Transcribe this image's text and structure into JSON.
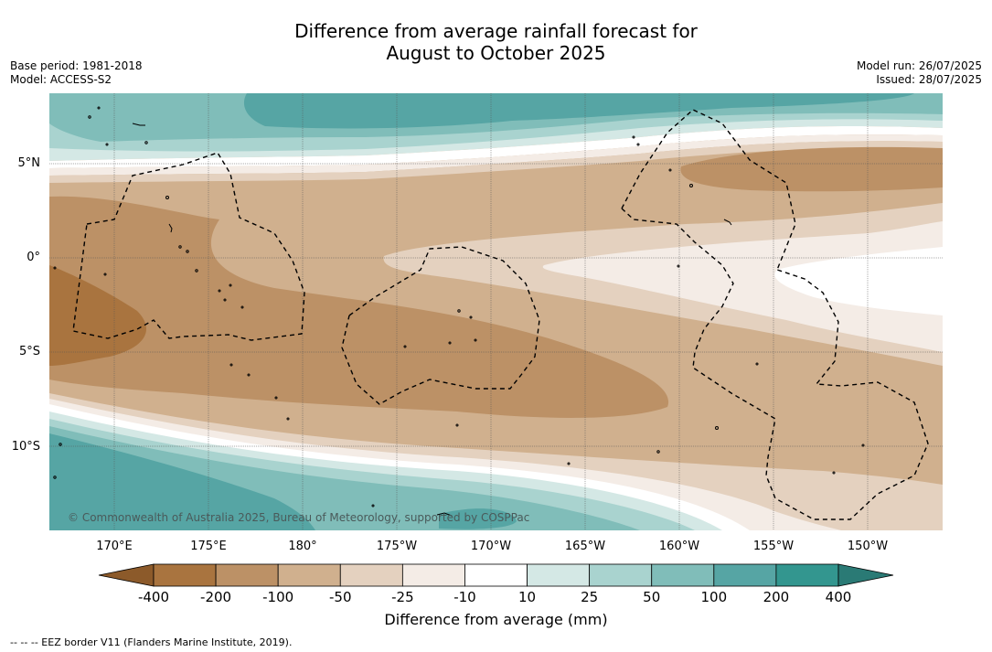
{
  "title_line1": "Difference from average rainfall forecast for",
  "title_line2": "August to October 2025",
  "base_period": "Base period: 1981-2018",
  "model": "Model: ACCESS-S2",
  "model_run": "Model run: 26/07/2025",
  "issued": "Issued: 28/07/2025",
  "lat_labels": [
    "5°N",
    "0°",
    "5°S",
    "10°S"
  ],
  "lon_labels": [
    "170°E",
    "175°E",
    "180°",
    "175°W",
    "170°W",
    "165°W",
    "160°W",
    "155°W",
    "150°W"
  ],
  "copyright": "© Commonwealth of Australia 2025, Bureau of Meteorology, supported by COSPPac",
  "colorbar": {
    "ticks": [
      "-400",
      "-200",
      "-100",
      "-50",
      "-25",
      "-10",
      "10",
      "25",
      "50",
      "100",
      "200",
      "400"
    ],
    "colors": [
      "#a9743f",
      "#bc9166",
      "#d0b08e",
      "#e4d1bf",
      "#f4ece6",
      "#ffffff",
      "#d4e8e5",
      "#a9d3cf",
      "#80bdb9",
      "#56a5a4",
      "#33968f"
    ],
    "low_color": "#8c5a2a",
    "high_color": "#2a7a75",
    "label": "Difference from average (mm)"
  },
  "legend_note": "-- -- -- EEZ border V11 (Flanders Marine Institute, 2019).",
  "map_colors": {
    "teal_dark": "#56a5a4",
    "teal_mid": "#80bdb9",
    "teal_light": "#a9d3cf",
    "teal_pale": "#d4e8e5",
    "brown_dark": "#a9743f",
    "brown_mid": "#bc9166",
    "brown_light": "#d0b08e",
    "tan": "#e4d1bf",
    "cream": "#f4ece6"
  }
}
